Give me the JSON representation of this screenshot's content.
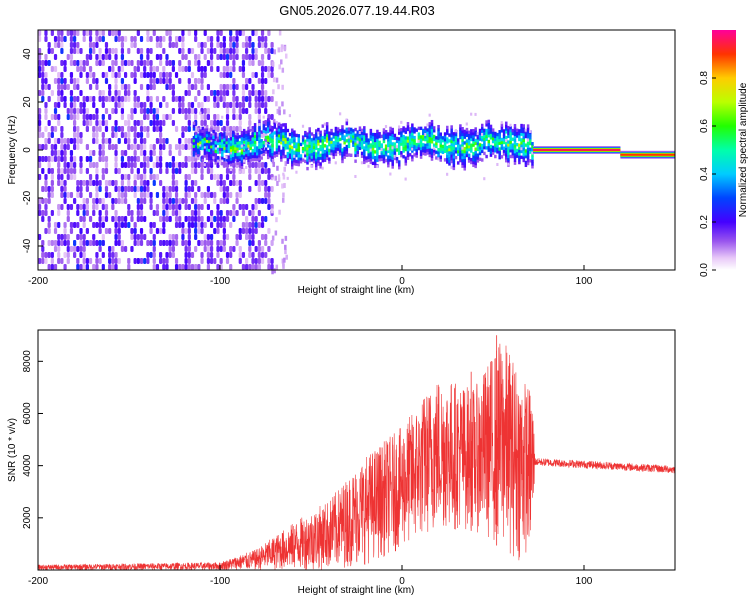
{
  "figure": {
    "title": "GN05.2026.077.19.44.R03"
  },
  "chart_data": [
    {
      "type": "heatmap",
      "title": "",
      "xlabel": "Height of straight line (km)",
      "ylabel": "Frequency (Hz)",
      "xlim": [
        -200,
        150
      ],
      "ylim": [
        -50,
        50
      ],
      "xticks": [
        -200,
        -100,
        0,
        100
      ],
      "yticks": [
        -40,
        -20,
        0,
        20,
        40
      ],
      "colorbar": {
        "label": "Normalized spectral amplitude",
        "range": [
          0.0,
          1.0
        ],
        "ticks": [
          0.0,
          0.2,
          0.4,
          0.6,
          0.8
        ],
        "tick_labels": [
          "0.0",
          "0.2",
          "0.4",
          "0.6",
          "0.8"
        ]
      },
      "regions": [
        {
          "name": "broadband noise",
          "x_range": [
            -200,
            -72
          ],
          "freq_range": [
            -50,
            50
          ],
          "amplitude": 0.15
        },
        {
          "name": "noisy signal band",
          "x_range": [
            -115,
            72
          ],
          "center_freq": 2,
          "half_width_hz": 6,
          "amplitude": 0.45
        },
        {
          "name": "clean tone",
          "x_range": [
            72,
            120
          ],
          "center_freq": 0,
          "amplitude": 0.95
        },
        {
          "name": "clean tone shifted",
          "x_range": [
            120,
            150
          ],
          "center_freq": -2,
          "amplitude": 0.9
        }
      ]
    },
    {
      "type": "line",
      "title": "",
      "xlabel": "Height of straight line (km)",
      "ylabel": "SNR (10 * v/v)",
      "xlim": [
        -200,
        150
      ],
      "ylim": [
        0,
        9200
      ],
      "xticks": [
        -200,
        -100,
        0,
        100
      ],
      "yticks": [
        2000,
        4000,
        6000,
        8000
      ],
      "series": [
        {
          "name": "SNR",
          "color": "#ee3333",
          "envelope_x": [
            -200,
            -150,
            -100,
            -80,
            -60,
            -40,
            -20,
            0,
            20,
            40,
            55,
            65,
            72,
            73,
            100,
            150
          ],
          "envelope_low": [
            0,
            0,
            0,
            0,
            0,
            0,
            200,
            800,
            1500,
            1500,
            800,
            300,
            1000,
            4000,
            3900,
            3700
          ],
          "envelope_high": [
            200,
            250,
            300,
            800,
            1800,
            2700,
            4400,
            5500,
            7500,
            7000,
            9000,
            7600,
            6800,
            4300,
            4200,
            4000
          ],
          "notable_spikes": [
            {
              "x": 38,
              "y": 7600
            },
            {
              "x": 52,
              "y": 9000
            }
          ]
        }
      ]
    }
  ]
}
